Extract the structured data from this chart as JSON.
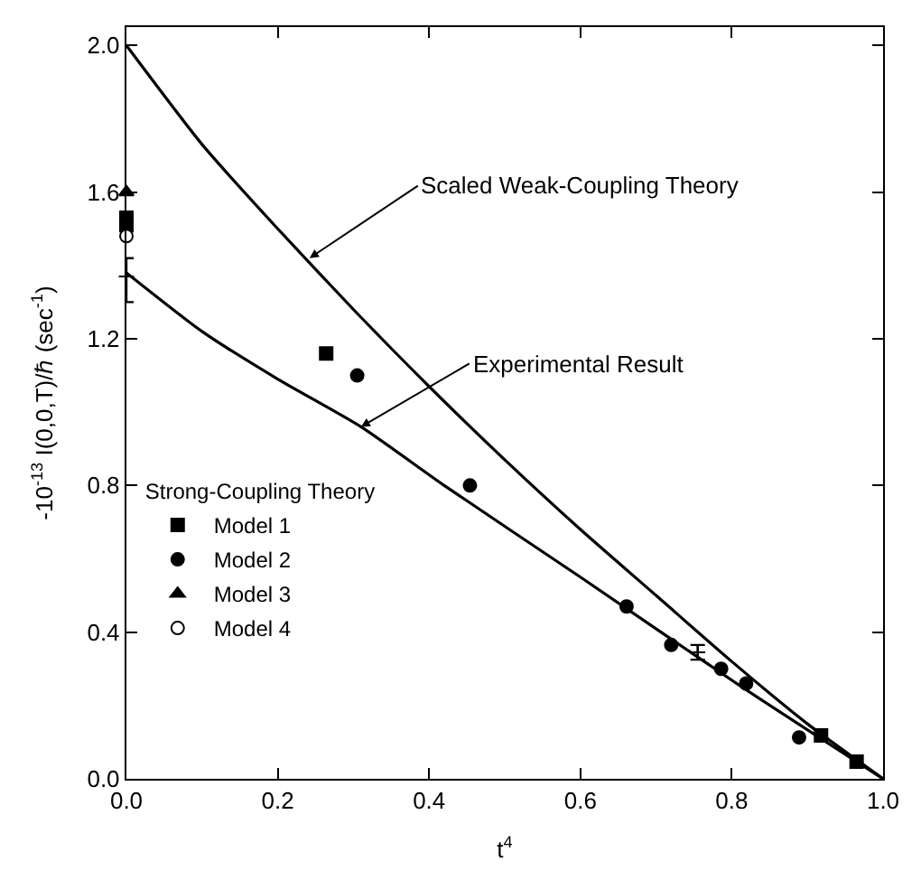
{
  "chart_data": {
    "type": "scatter",
    "xlabel": "t$^{4}$",
    "ylabel": "-10$^{-13}$ I(0,0,T)/ℏ (sec$^{-1}$)",
    "legend_title": "Strong-Coupling Theory",
    "legend": "left",
    "xlim": [
      0,
      1.0
    ],
    "ylim": [
      0,
      2.05
    ],
    "xticks": [
      {
        "value": 0,
        "label": "0.0"
      },
      0.2,
      0.4,
      0.6,
      0.8,
      {
        "value": 1,
        "label": "1.0"
      }
    ],
    "yticks": [
      {
        "value": 0,
        "label": "0.0"
      },
      0.4,
      0.8,
      1.2,
      1.6,
      {
        "value": 2,
        "label": "2.0"
      }
    ],
    "series": [
      {
        "type": "line",
        "color": "#000000",
        "marker": "none",
        "line_style": "solid",
        "x": [
          0,
          0.1,
          0.2,
          0.3,
          0.4,
          0.5,
          0.6,
          0.7,
          0.8,
          0.9,
          1.0
        ],
        "values": [
          2.0,
          1.73,
          1.5,
          1.28,
          1.07,
          0.87,
          0.68,
          0.5,
          0.32,
          0.15,
          0
        ]
      },
      {
        "type": "line",
        "color": "#000000",
        "marker": "none",
        "line_style": "solid",
        "x": [
          0,
          0.1,
          0.2,
          0.31,
          0.42,
          0.6,
          0.81,
          1.0
        ],
        "values": [
          1.38,
          1.22,
          1.09,
          0.96,
          0.8,
          0.55,
          0.255,
          0
        ]
      },
      {
        "type": "scatter",
        "color": "#000000",
        "marker": "cross",
        "x": [
          0,
          0.755
        ],
        "values": [
          1.37,
          0.345
        ],
        "errors": [
          [
            1.3,
            1.42
          ],
          0.02
        ]
      },
      {
        "name": "Model 1",
        "color": "#000000",
        "marker": "square",
        "x": [
          0,
          0,
          0.264,
          0.918,
          0.965
        ],
        "values": [
          1.53,
          1.51,
          1.16,
          0.118,
          0.047
        ]
      },
      {
        "name": "Model 2",
        "color": "#000000",
        "marker": "circle",
        "x": [
          0.305,
          0.454,
          0.661,
          0.72,
          0.786,
          0.819,
          0.889
        ],
        "values": [
          1.1,
          0.8,
          0.47,
          0.365,
          0.3,
          0.26,
          0.113
        ]
      },
      {
        "name": "Model 3",
        "color": "#000000",
        "marker": "triangle",
        "x": [
          0
        ],
        "values": [
          1.6
        ]
      },
      {
        "name": "Model 4",
        "color": "#ffffff",
        "marker": "circle",
        "x": [
          0
        ],
        "values": [
          1.48
        ]
      }
    ],
    "annotations": [
      {
        "text": "Scaled Weak-Coupling Theory",
        "x": 0.242,
        "y": 1.42
      },
      {
        "text": "Experimental Result",
        "x": 0.31,
        "y": 0.96
      }
    ]
  }
}
